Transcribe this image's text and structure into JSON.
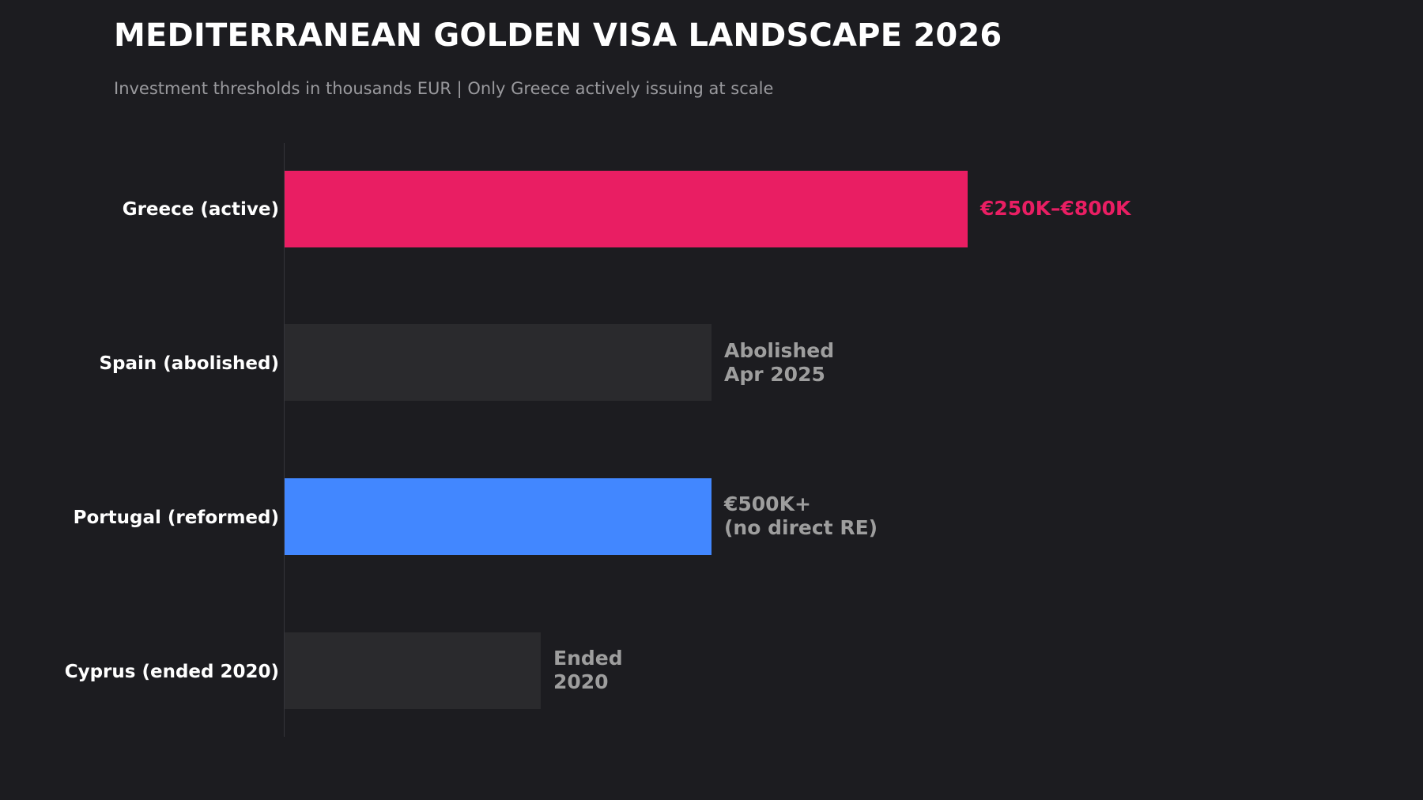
{
  "header": {
    "title": "MEDITERRANEAN GOLDEN VISA LANDSCAPE 2026",
    "subtitle": "Investment thresholds in thousands EUR | Only Greece actively issuing at scale"
  },
  "colors": {
    "background": "#1c1c20",
    "greece": "#e91e63",
    "spain": "#2a2a2d",
    "portugal": "#4287ff",
    "cyprus": "#2a2a2d",
    "highlight_label": "#e91e63",
    "muted_label": "#9e9e9e"
  },
  "rows": [
    {
      "label": "Greece (active)",
      "value": 800,
      "annotation": "€250K–€800K",
      "bar_color": "#e91e63",
      "annotation_color": "#e91e63"
    },
    {
      "label": "Spain (abolished)",
      "value": 500,
      "annotation": "Abolished\nApr 2025",
      "bar_color": "#2a2a2d",
      "annotation_color": "#9e9e9e"
    },
    {
      "label": "Portugal (reformed)",
      "value": 500,
      "annotation": "€500K+\n(no direct RE)",
      "bar_color": "#4287ff",
      "annotation_color": "#9e9e9e"
    },
    {
      "label": "Cyprus (ended 2020)",
      "value": 300,
      "annotation": "Ended\n2020",
      "bar_color": "#2a2a2d",
      "annotation_color": "#9e9e9e"
    }
  ],
  "chart_data": {
    "type": "bar",
    "orientation": "horizontal",
    "title": "MEDITERRANEAN GOLDEN VISA LANDSCAPE 2026",
    "subtitle": "Investment thresholds in thousands EUR | Only Greece actively issuing at scale",
    "categories": [
      "Greece (active)",
      "Spain (abolished)",
      "Portugal (reformed)",
      "Cyprus (ended 2020)"
    ],
    "values": [
      800,
      500,
      500,
      300
    ],
    "annotations": [
      "€250K–€800K",
      "Abolished Apr 2025",
      "€500K+ (no direct RE)",
      "Ended 2020"
    ],
    "xlabel": "",
    "ylabel": "",
    "unit": "thousands EUR",
    "grid": false,
    "legend": null
  }
}
